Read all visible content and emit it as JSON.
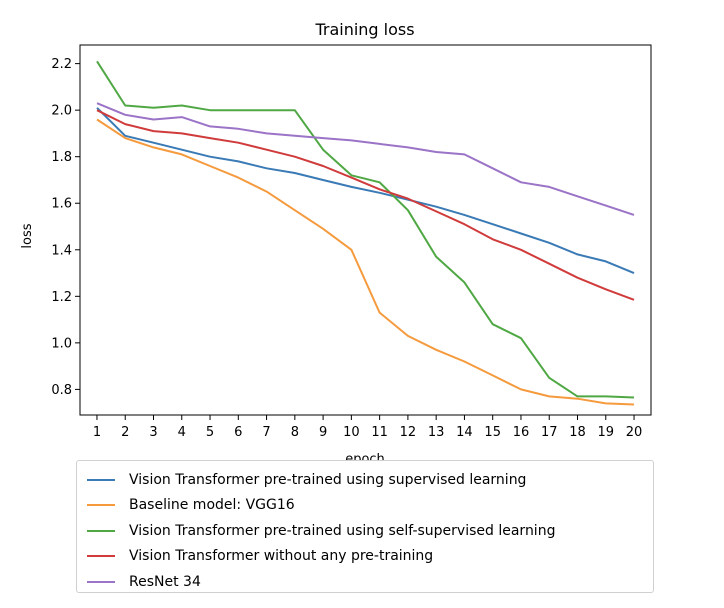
{
  "chart_data": {
    "type": "line",
    "title": "Training loss",
    "xlabel": "epoch",
    "ylabel": "loss",
    "x": [
      1,
      2,
      3,
      4,
      5,
      6,
      7,
      8,
      9,
      10,
      11,
      12,
      13,
      14,
      15,
      16,
      17,
      18,
      19,
      20
    ],
    "xticks": [
      "1",
      "2",
      "3",
      "4",
      "5",
      "6",
      "7",
      "8",
      "9",
      "10",
      "11",
      "12",
      "13",
      "14",
      "15",
      "16",
      "17",
      "18",
      "19",
      "20"
    ],
    "xlim": [
      0.4,
      20.6
    ],
    "ylim": [
      0.69,
      2.28
    ],
    "yticks": [
      0.8,
      1.0,
      1.2,
      1.4,
      1.6,
      1.8,
      2.0,
      2.2
    ],
    "ytick_labels": [
      "0.8",
      "1.0",
      "1.2",
      "1.4",
      "1.6",
      "1.8",
      "2.0",
      "2.2"
    ],
    "grid": false,
    "legend_position": "below",
    "series": [
      {
        "name": "Vision Transformer pre-trained using supervised learning",
        "color": "#3a7ab5",
        "values": [
          2.01,
          1.89,
          1.86,
          1.83,
          1.8,
          1.78,
          1.75,
          1.73,
          1.7,
          1.67,
          1.645,
          1.615,
          1.585,
          1.55,
          1.51,
          1.47,
          1.43,
          1.38,
          1.35,
          1.3
        ]
      },
      {
        "name": "Baseline model: VGG16",
        "color": "#f59a3d",
        "values": [
          1.96,
          1.88,
          1.84,
          1.81,
          1.76,
          1.71,
          1.65,
          1.57,
          1.49,
          1.4,
          1.13,
          1.03,
          0.97,
          0.92,
          0.86,
          0.8,
          0.77,
          0.76,
          0.74,
          0.735
        ]
      },
      {
        "name": "Vision Transformer pre-trained using self-supervised learning",
        "color": "#4fa844",
        "values": [
          2.21,
          2.02,
          2.01,
          2.02,
          2.0,
          2.0,
          2.0,
          2.0,
          1.83,
          1.72,
          1.69,
          1.57,
          1.37,
          1.26,
          1.08,
          1.02,
          0.85,
          0.77,
          0.77,
          0.765
        ]
      },
      {
        "name": "Vision Transformer without any pre-training",
        "color": "#d03b3b",
        "values": [
          2.0,
          1.94,
          1.91,
          1.9,
          1.88,
          1.86,
          1.83,
          1.8,
          1.76,
          1.71,
          1.66,
          1.62,
          1.565,
          1.51,
          1.445,
          1.4,
          1.34,
          1.28,
          1.23,
          1.185
        ]
      },
      {
        "name": "ResNet 34",
        "color": "#9b73c7",
        "values": [
          2.03,
          1.98,
          1.96,
          1.97,
          1.93,
          1.92,
          1.9,
          1.89,
          1.88,
          1.87,
          1.855,
          1.84,
          1.82,
          1.81,
          1.75,
          1.69,
          1.67,
          1.63,
          1.59,
          1.55
        ]
      }
    ]
  }
}
